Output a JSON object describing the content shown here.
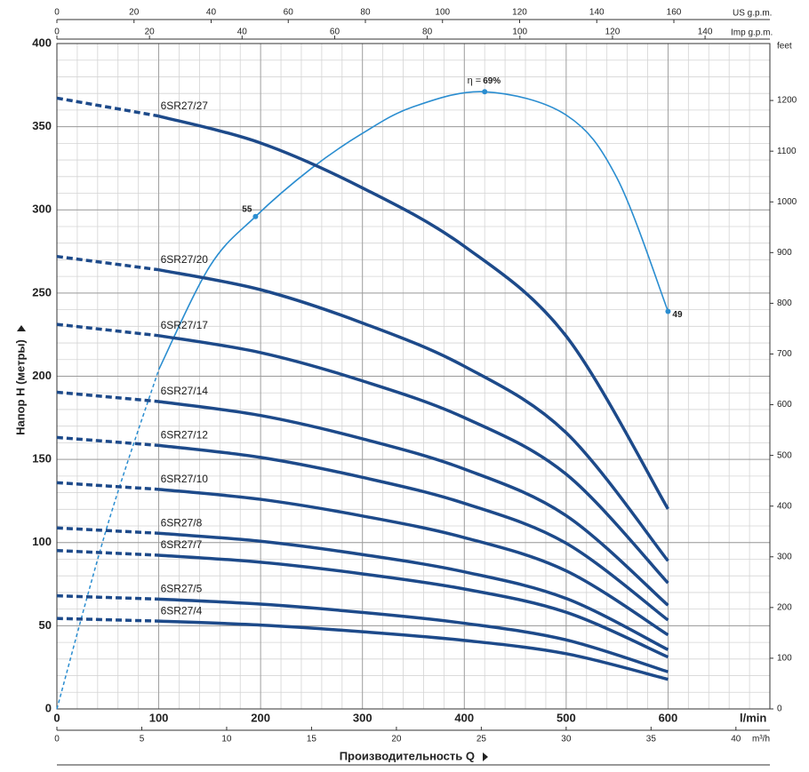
{
  "chart_data": {
    "type": "line",
    "y_label": "Напор H (метры)",
    "x_label": "Производительность Q",
    "x_unit": "l/min",
    "x2_unit": "m³/h",
    "top_unit": "US g.p.m.",
    "top2_unit": "Imp g.p.m.",
    "y2_unit": "feet",
    "xlim": [
      0,
      700
    ],
    "xticks": [
      0,
      100,
      200,
      300,
      400,
      500,
      600
    ],
    "ylim": [
      0,
      400
    ],
    "yticks": [
      0,
      50,
      100,
      150,
      200,
      250,
      300,
      350,
      400
    ],
    "x2lim": [
      0,
      42
    ],
    "x2ticks": [
      0,
      5,
      10,
      15,
      20,
      25,
      30,
      35,
      40
    ],
    "toplim": [
      0,
      184.9
    ],
    "topticks": [
      0,
      20,
      40,
      60,
      80,
      100,
      120,
      140,
      160
    ],
    "top2lim": [
      0,
      154
    ],
    "top2ticks": [
      0,
      20,
      40,
      60,
      80,
      100,
      120,
      140
    ],
    "y2lim": [
      0,
      1312.3
    ],
    "y2ticks": [
      0,
      100,
      200,
      300,
      400,
      500,
      600,
      700,
      800,
      900,
      1000,
      1100,
      1200
    ],
    "grid": true,
    "minor_grid": {
      "x": 20,
      "y": 10
    },
    "x": [
      0,
      100,
      200,
      300,
      400,
      500,
      600
    ],
    "series": [
      {
        "name": "6SR27/27",
        "color": "#1d4a8a",
        "values": [
          367.2,
          356.4,
          340.2,
          313.2,
          278.1,
          224.1,
          120.2
        ]
      },
      {
        "name": "6SR27/20",
        "color": "#1d4a8a",
        "values": [
          272,
          264,
          252,
          232,
          206,
          166,
          89
        ]
      },
      {
        "name": "6SR27/17",
        "color": "#1d4a8a",
        "values": [
          231.2,
          224.4,
          214.2,
          197.2,
          175.1,
          141.1,
          75.7
        ]
      },
      {
        "name": "6SR27/14",
        "color": "#1d4a8a",
        "values": [
          190.4,
          184.8,
          176.4,
          162.4,
          144.2,
          116.2,
          62.3
        ]
      },
      {
        "name": "6SR27/12",
        "color": "#1d4a8a",
        "values": [
          163.2,
          158.4,
          151.2,
          139.2,
          123.6,
          99.6,
          53.4
        ]
      },
      {
        "name": "6SR27/10",
        "color": "#1d4a8a",
        "values": [
          136,
          132,
          126,
          116,
          103,
          83,
          44.5
        ]
      },
      {
        "name": "6SR27/8",
        "color": "#1d4a8a",
        "values": [
          108.8,
          105.6,
          100.8,
          92.8,
          82.4,
          66.4,
          35.6
        ]
      },
      {
        "name": "6SR27/7",
        "color": "#1d4a8a",
        "values": [
          95.2,
          92.4,
          88.2,
          81.2,
          72.1,
          58.1,
          31.2
        ]
      },
      {
        "name": "6SR27/5",
        "color": "#1d4a8a",
        "values": [
          68,
          66,
          63,
          58,
          51.5,
          41.5,
          22.3
        ]
      },
      {
        "name": "6SR27/4",
        "color": "#1d4a8a",
        "values": [
          54.4,
          52.8,
          50.4,
          46.4,
          41.2,
          33.2,
          17.8
        ]
      }
    ],
    "efficiency": {
      "color": "#2a8dd0",
      "prefix": "η =",
      "x": [
        0,
        50,
        100,
        150,
        195,
        250,
        300,
        350,
        420,
        500,
        550,
        600
      ],
      "values": [
        0,
        111,
        204,
        266,
        296,
        325,
        346,
        362,
        371,
        357,
        319,
        239
      ],
      "labels": [
        null,
        null,
        null,
        null,
        "55",
        null,
        null,
        null,
        "69%",
        null,
        null,
        "49"
      ]
    }
  }
}
